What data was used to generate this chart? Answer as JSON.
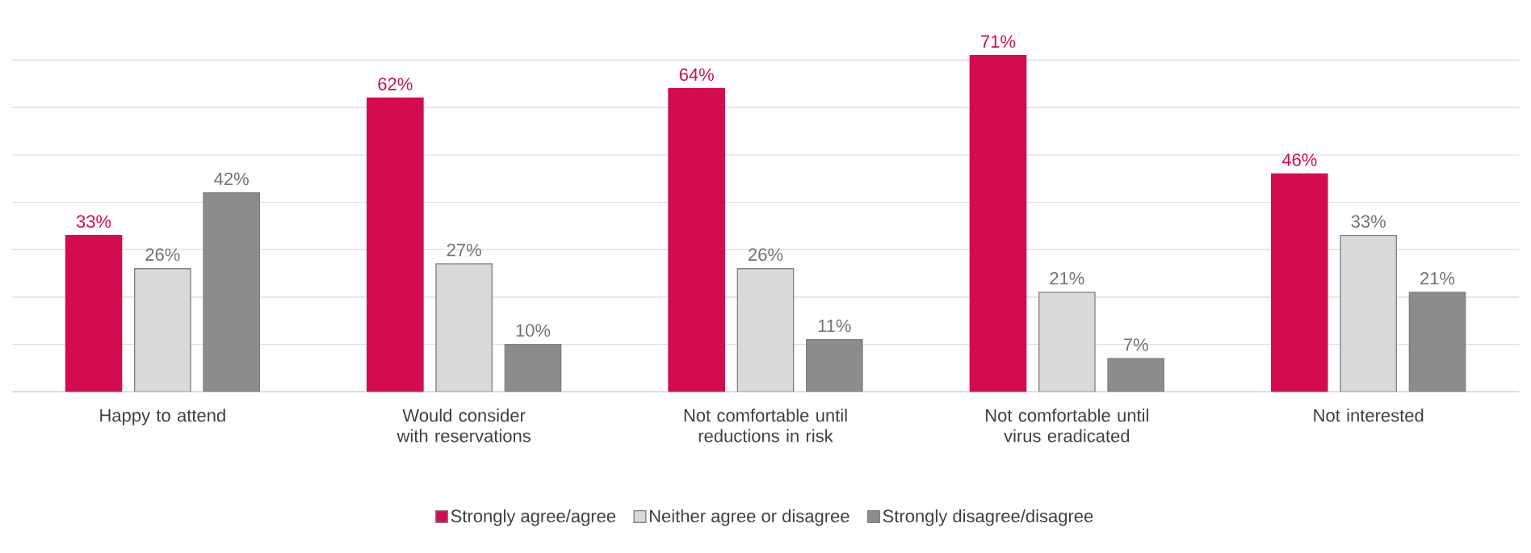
{
  "chart_data": {
    "type": "bar",
    "categories": [
      "Happy to attend",
      "Would consider with reservations",
      "Not comfortable until reductions in risk",
      "Not comfortable until virus eradicated",
      "Not interested"
    ],
    "series": [
      {
        "name": "Strongly agree/agree",
        "color": "#d40c4f",
        "values": [
          33,
          62,
          64,
          71,
          46
        ],
        "value_labels": [
          "33%",
          "62%",
          "64%",
          "71%",
          "46%"
        ]
      },
      {
        "name": "Neither agree or disagree",
        "color": "#d9d9d9",
        "values": [
          26,
          27,
          26,
          21,
          33
        ],
        "value_labels": [
          "26%",
          "27%",
          "26%",
          "21%",
          "33%"
        ]
      },
      {
        "name": "Strongly disagree/disagree",
        "color": "#8c8c8c",
        "values": [
          42,
          10,
          11,
          7,
          21
        ],
        "value_labels": [
          "42%",
          "10%",
          "11%",
          "7%",
          "21%"
        ]
      }
    ],
    "tick_labels": "x",
    "grid": "y",
    "legend": "bottom"
  }
}
